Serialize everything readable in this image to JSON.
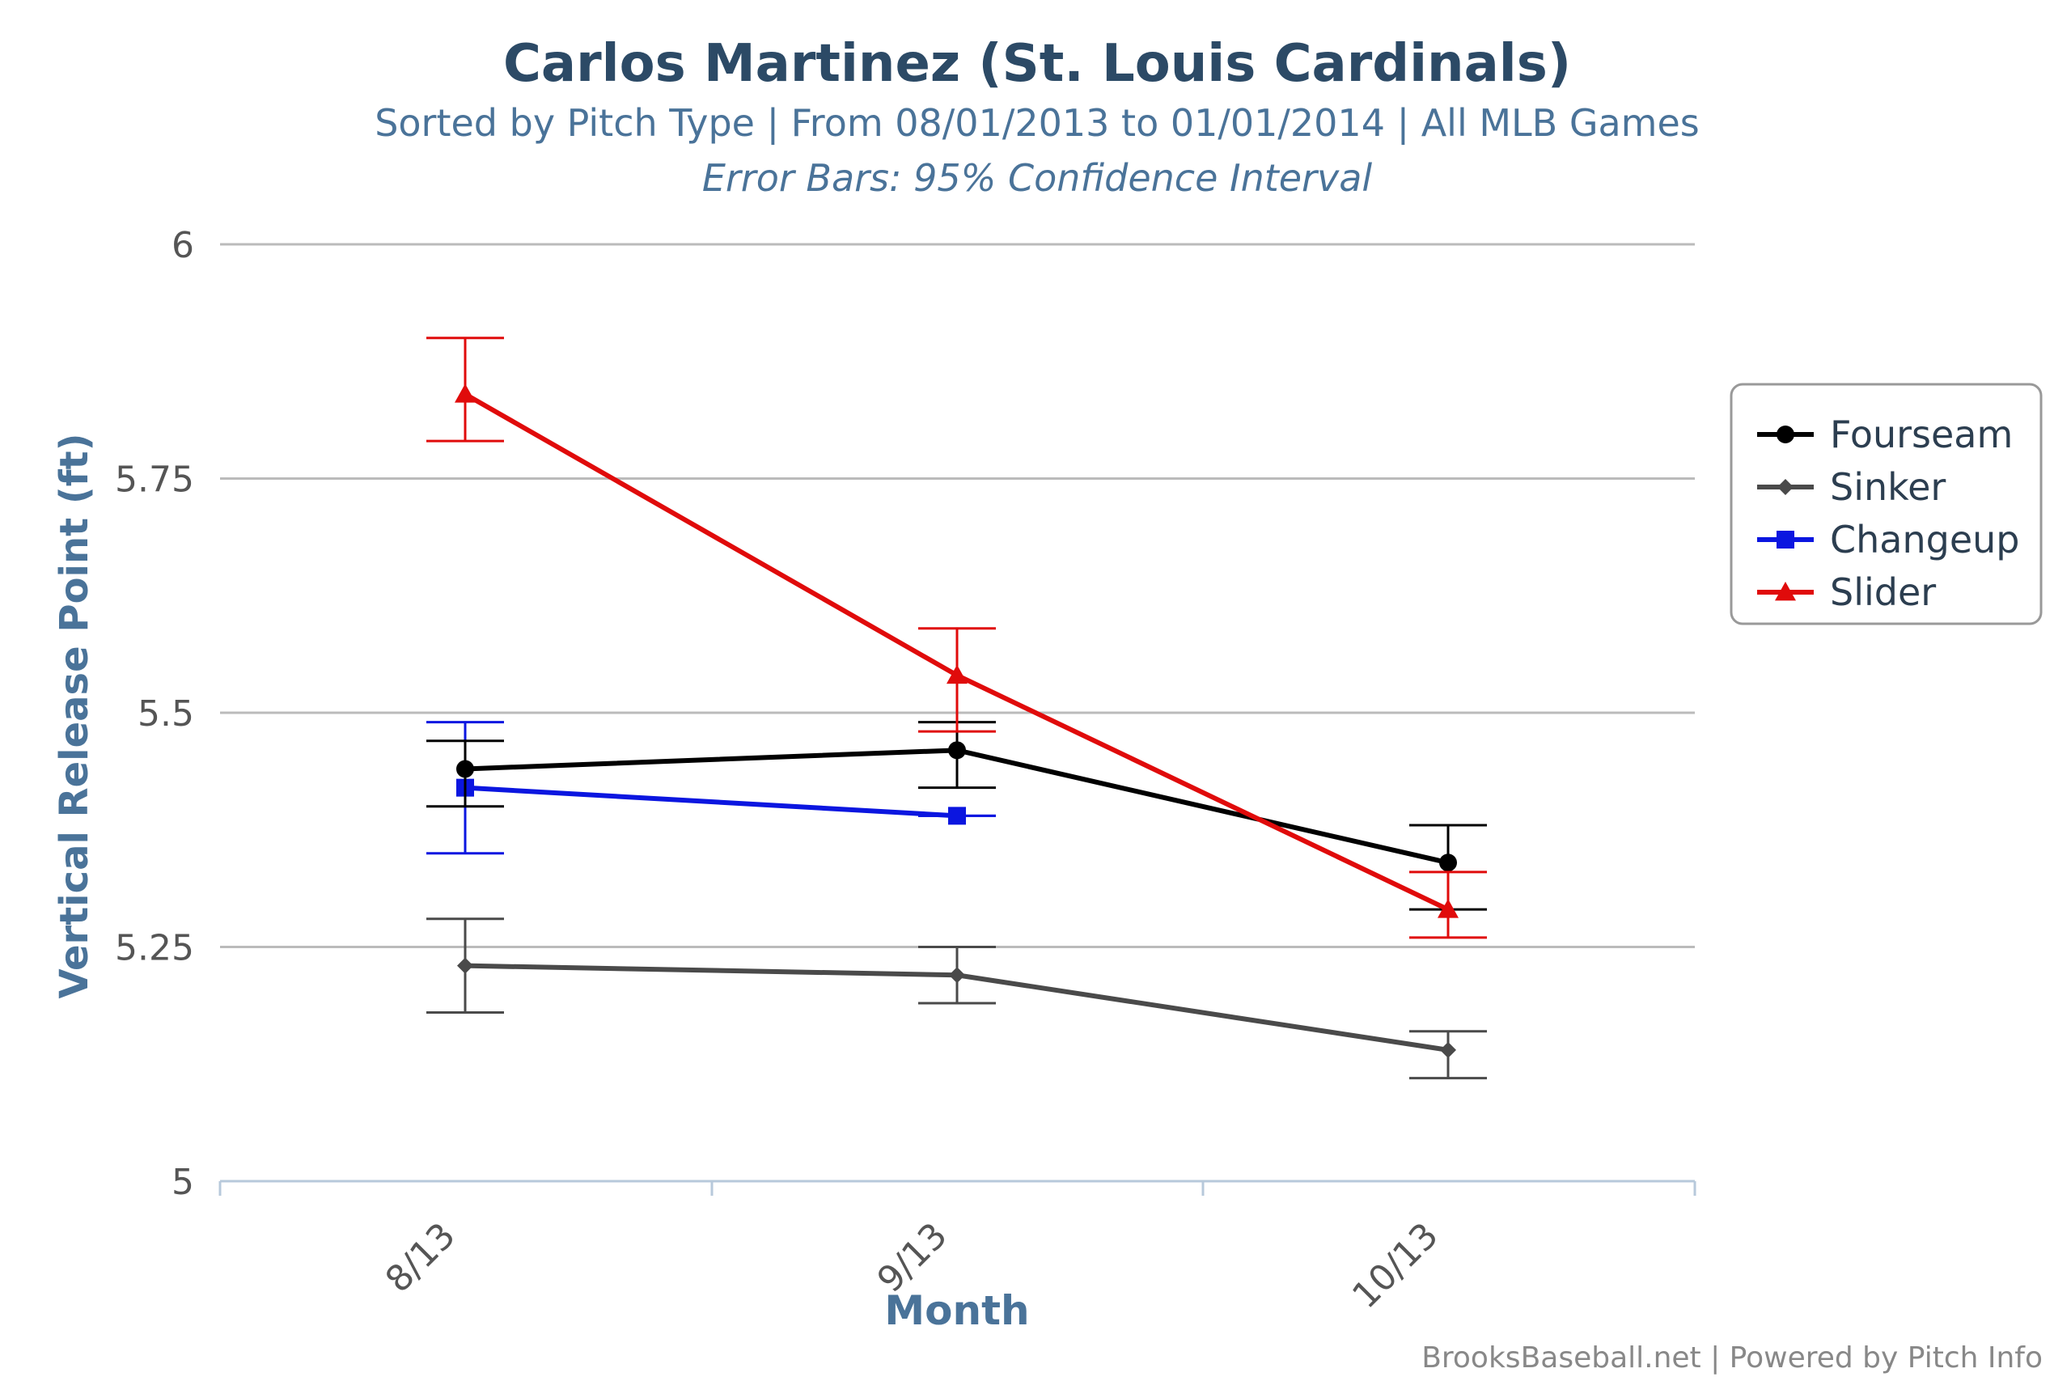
{
  "chart_data": {
    "type": "line",
    "title": "Carlos Martinez (St. Louis Cardinals)",
    "subtitle": "Sorted by Pitch Type | From 08/01/2013 to 01/01/2014 | All MLB Games",
    "subtitle2": "Error Bars: 95% Confidence Interval",
    "xlabel": "Month",
    "ylabel": "Vertical Release Point (ft)",
    "categories": [
      "8/13",
      "9/13",
      "10/13"
    ],
    "ylim": [
      5,
      6
    ],
    "yticks": [
      5,
      5.25,
      5.5,
      5.75,
      6
    ],
    "ytick_labels": [
      "5",
      "5.25",
      "5.5",
      "5.75",
      "6"
    ],
    "grid": true,
    "legend_position": "right",
    "series": [
      {
        "name": "Fourseam",
        "color": "#000000",
        "marker": "circle",
        "values": [
          5.44,
          5.46,
          5.34
        ],
        "error_low": [
          5.4,
          5.42,
          5.29
        ],
        "error_high": [
          5.47,
          5.49,
          5.38
        ]
      },
      {
        "name": "Sinker",
        "color": "#4a4a4a",
        "marker": "diamond",
        "values": [
          5.23,
          5.22,
          5.14
        ],
        "error_low": [
          5.18,
          5.19,
          5.11
        ],
        "error_high": [
          5.28,
          5.25,
          5.16
        ]
      },
      {
        "name": "Changeup",
        "color": "#0b16e0",
        "marker": "square",
        "values": [
          5.42,
          5.39,
          null
        ],
        "error_low": [
          5.35,
          5.39,
          null
        ],
        "error_high": [
          5.49,
          5.39,
          null
        ]
      },
      {
        "name": "Slider",
        "color": "#e00b0b",
        "marker": "triangle",
        "values": [
          5.84,
          5.54,
          5.29
        ],
        "error_low": [
          5.79,
          5.48,
          5.26
        ],
        "error_high": [
          5.9,
          5.59,
          5.33
        ]
      }
    ],
    "credit": "BrooksBaseball.net | Powered by Pitch Info"
  },
  "colors": {
    "title": "#2c4a66",
    "subtitle": "#4a7399",
    "axis_label": "#4a7399",
    "tick_label": "#555555",
    "grid": "#bbbbbb",
    "axis_line": "#b7c9db",
    "legend_border": "#999999",
    "credit": "#888888"
  }
}
